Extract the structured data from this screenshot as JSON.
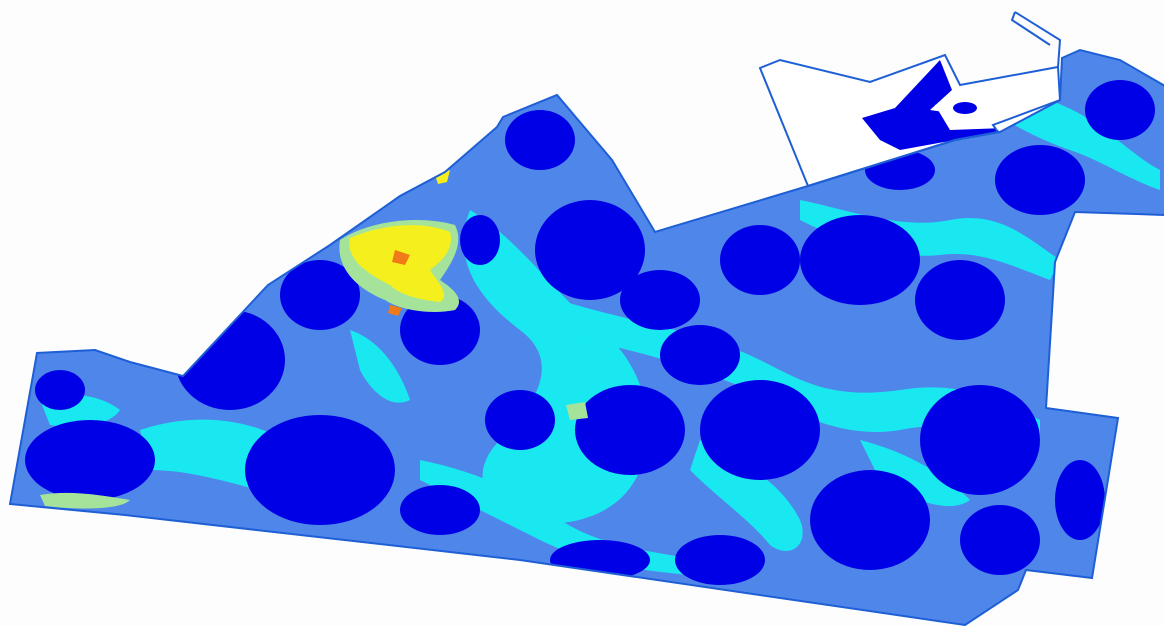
{
  "map": {
    "type": "field-zone-map",
    "colors": {
      "background": "#fdfdfd",
      "boundary_stroke": "#1e5fd6",
      "zone_very_low": "#0000e6",
      "zone_low": "#4f86ea",
      "zone_medium": "#19e8f0",
      "zone_moderate": "#a6e39a",
      "zone_high": "#f5ef1e",
      "zone_very_high": "#f07a18",
      "excluded_area": "#ffffff"
    }
  }
}
